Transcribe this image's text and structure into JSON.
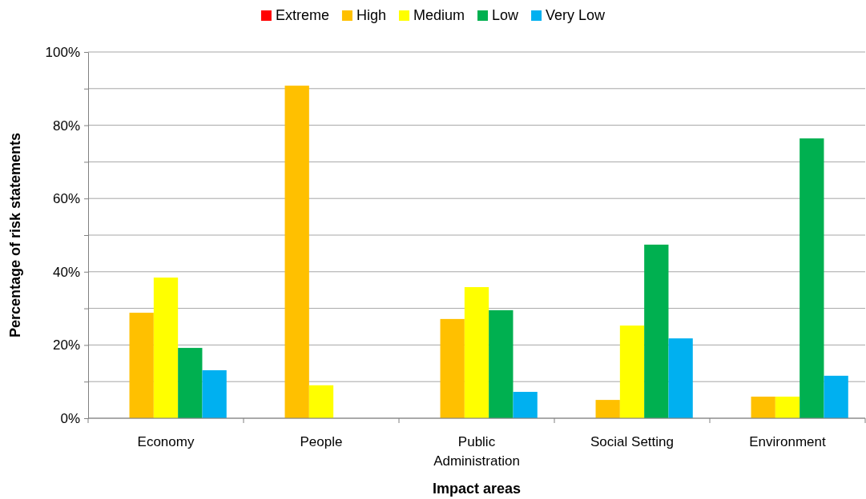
{
  "chart_data": {
    "type": "bar",
    "xlabel": "Impact areas",
    "ylabel": "Percentage of risk statements",
    "categories": [
      "Economy",
      "People",
      "Public Administration",
      "Social Setting",
      "Environment"
    ],
    "series": [
      {
        "name": "Extreme",
        "color": "#ff0000",
        "values": [
          0,
          0,
          0,
          0,
          0
        ]
      },
      {
        "name": "High",
        "color": "#ffc000",
        "values": [
          28.8,
          90.8,
          27.1,
          5.0,
          5.9
        ]
      },
      {
        "name": "Medium",
        "color": "#ffff00",
        "values": [
          38.4,
          9.0,
          35.8,
          25.3,
          5.9
        ]
      },
      {
        "name": "Low",
        "color": "#00b050",
        "values": [
          19.2,
          0,
          29.5,
          47.4,
          76.4
        ]
      },
      {
        "name": "Very Low",
        "color": "#00b0f0",
        "values": [
          13.1,
          0,
          7.2,
          21.8,
          11.6
        ]
      }
    ],
    "ylim": [
      0,
      100
    ],
    "yticks": [
      {
        "value": 0,
        "label": "0%"
      },
      {
        "value": 10,
        "label": null
      },
      {
        "value": 20,
        "label": "20%"
      },
      {
        "value": 30,
        "label": null
      },
      {
        "value": 40,
        "label": "40%"
      },
      {
        "value": 50,
        "label": null
      },
      {
        "value": 60,
        "label": "60%"
      },
      {
        "value": 70,
        "label": null
      },
      {
        "value": 80,
        "label": "80%"
      },
      {
        "value": 90,
        "label": null
      },
      {
        "value": 100,
        "label": "100%"
      }
    ],
    "grid": "y",
    "legend": "top"
  }
}
